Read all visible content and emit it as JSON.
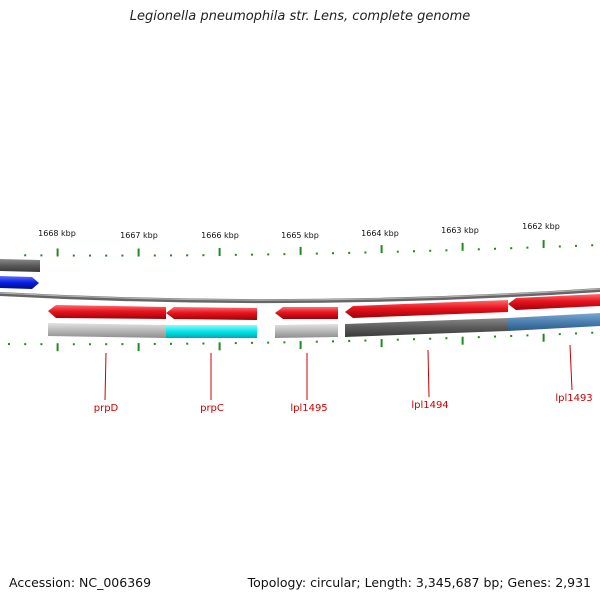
{
  "title": "Legionella pneumophila str. Lens, complete genome",
  "footer": {
    "accession": "Accession: NC_006369",
    "summary": "Topology: circular; Length: 3,345,687 bp; Genes: 2,931"
  },
  "ruler": {
    "labels": [
      "1668 kbp",
      "1667 kbp",
      "1666 kbp",
      "1665 kbp",
      "1664 kbp",
      "1663 kbp",
      "1662 kbp"
    ]
  },
  "genes": [
    {
      "label": "prpD"
    },
    {
      "label": "prpC"
    },
    {
      "label": "lpl1495"
    },
    {
      "label": "lpl1494"
    },
    {
      "label": "lpl1493"
    }
  ],
  "colors": {
    "gene": "#e8141e",
    "tick": "#1f8a1f",
    "backbone": "#888888",
    "label": "#cc0000",
    "highlight": "#00e5e8",
    "dark_track": "#555555",
    "blue_track": "#4a7fb0",
    "blue_gene": "#0a1fe0"
  }
}
